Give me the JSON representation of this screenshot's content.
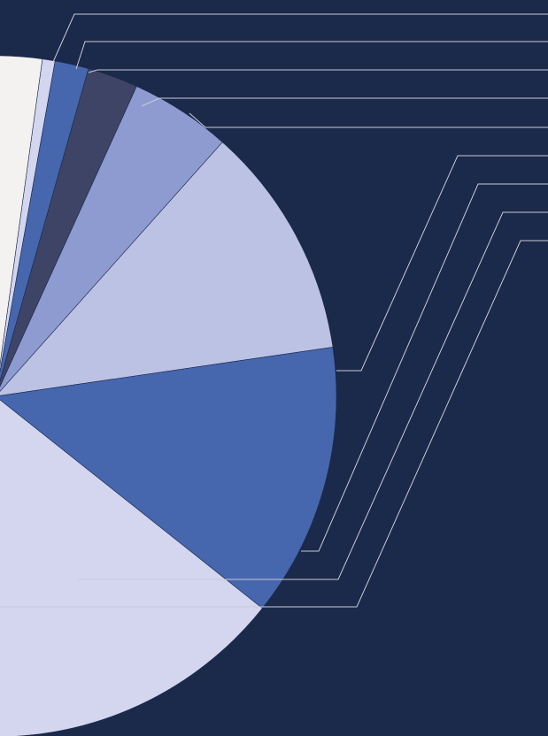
{
  "chart_data": {
    "type": "pie",
    "title": "",
    "start_angle_deg": -82.1,
    "clockwise": true,
    "background": "#1b294b",
    "leader_line_color": "#c9cbd6",
    "legend": "none",
    "slices": [
      {
        "value": 0.6,
        "color": "#d3d6ee"
      },
      {
        "value": 1.6,
        "color": "#4666ad"
      },
      {
        "value": 2.4,
        "color": "#3e4466"
      },
      {
        "value": 4.8,
        "color": "#8e9bd1"
      },
      {
        "value": 11.1,
        "color": "#bcc2e4"
      },
      {
        "value": 13.0,
        "color": "#4666ad"
      },
      {
        "value": 16.8,
        "color": "#d3d6ee"
      },
      {
        "value": 49.7,
        "color": "#f3f2f0"
      }
    ]
  }
}
